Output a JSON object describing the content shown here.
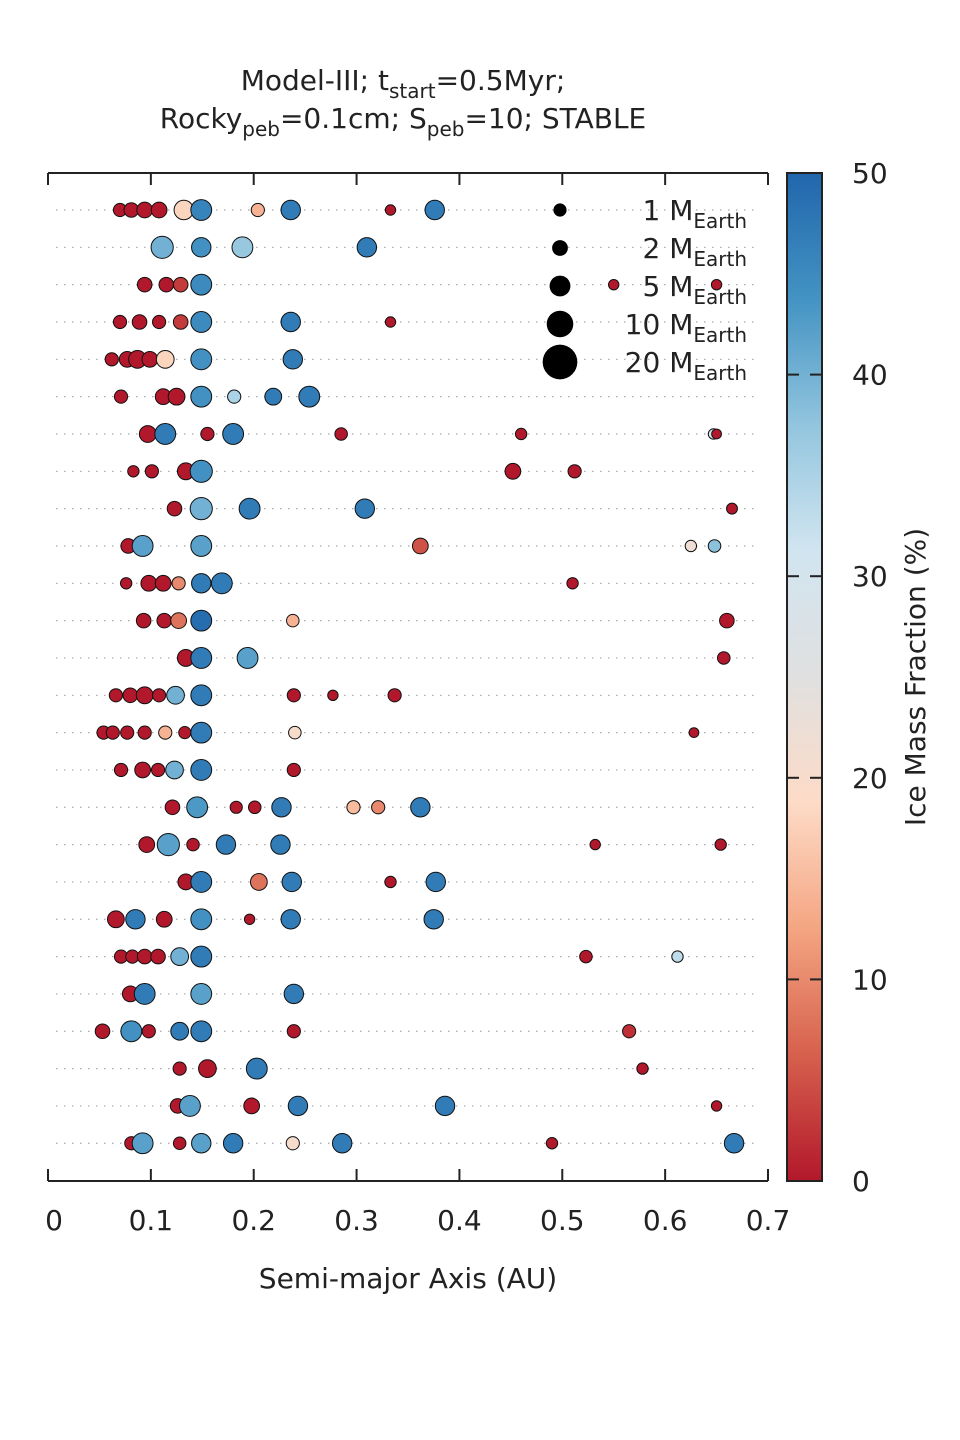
{
  "chart_data": {
    "type": "scatter",
    "title_line1": "Model-III; t",
    "title_line1_sub": "start",
    "title_line1_rest": "=0.5Myr;",
    "title_line2_a": "Rocky",
    "title_line2_a_sub": "peb",
    "title_line2_b": "=0.1cm; S",
    "title_line2_b_sub": "peb",
    "title_line2_c": "=10; STABLE",
    "xlabel": "Semi-major Axis (AU)",
    "xlim": [
      0,
      0.7
    ],
    "xticks": [
      "0",
      "0.1",
      "0.2",
      "0.3",
      "0.4",
      "0.5",
      "0.6",
      "0.7"
    ],
    "colorbar": {
      "label": "Ice Mass Fraction (%)",
      "range": [
        0,
        50
      ],
      "ticks": [
        "0",
        "10",
        "20",
        "30",
        "40",
        "50"
      ],
      "colors": [
        "#b2182b",
        "#d6604d",
        "#f4a582",
        "#fddbc7",
        "#e0e0e0",
        "#d1e5f0",
        "#92c5de",
        "#4393c3",
        "#2166ac"
      ]
    },
    "legend": [
      {
        "mass": 1,
        "label": "1 M",
        "sub": "Earth"
      },
      {
        "mass": 2,
        "label": "2 M",
        "sub": "Earth"
      },
      {
        "mass": 5,
        "label": "5 M",
        "sub": "Earth"
      },
      {
        "mass": 10,
        "label": "10 M",
        "sub": "Earth"
      },
      {
        "mass": 20,
        "label": "20 M",
        "sub": "Earth"
      }
    ],
    "systems": [
      [
        [
          0.07,
          1,
          0
        ],
        [
          0.081,
          1.5,
          0
        ],
        [
          0.094,
          2,
          0
        ],
        [
          0.108,
          2,
          0
        ],
        [
          0.132,
          4,
          18
        ],
        [
          0.149,
          5,
          46
        ],
        [
          0.204,
          1,
          14
        ],
        [
          0.236,
          4,
          47
        ],
        [
          0.333,
          0.3,
          0
        ],
        [
          0.376,
          4,
          47
        ]
      ],
      [
        [
          0.111,
          6,
          40
        ],
        [
          0.149,
          4,
          44
        ],
        [
          0.189,
          5,
          37
        ],
        [
          0.31,
          4,
          47
        ]
      ],
      [
        [
          0.094,
          1.5,
          0
        ],
        [
          0.115,
          1.5,
          0
        ],
        [
          0.129,
          1.5,
          3
        ],
        [
          0.149,
          5,
          45
        ],
        [
          0.55,
          0.3,
          0
        ],
        [
          0.65,
          0.3,
          0
        ]
      ],
      [
        [
          0.07,
          1,
          0
        ],
        [
          0.089,
          1.5,
          0
        ],
        [
          0.108,
          1,
          0
        ],
        [
          0.129,
          1.5,
          3
        ],
        [
          0.149,
          5,
          45
        ],
        [
          0.236,
          4,
          47
        ],
        [
          0.333,
          0.3,
          0
        ]
      ],
      [
        [
          0.062,
          1,
          0
        ],
        [
          0.077,
          2,
          0
        ],
        [
          0.087,
          3,
          0
        ],
        [
          0.099,
          2,
          0
        ],
        [
          0.114,
          3,
          18
        ],
        [
          0.149,
          5,
          44
        ],
        [
          0.238,
          4,
          47
        ]
      ],
      [
        [
          0.071,
          1,
          0
        ],
        [
          0.112,
          2,
          0
        ],
        [
          0.125,
          2.5,
          0
        ],
        [
          0.149,
          5,
          44
        ],
        [
          0.181,
          1,
          35
        ],
        [
          0.219,
          2.5,
          47
        ],
        [
          0.254,
          5,
          47
        ]
      ],
      [
        [
          0.097,
          2.5,
          0
        ],
        [
          0.114,
          5,
          47
        ],
        [
          0.155,
          1,
          0
        ],
        [
          0.18,
          5,
          47
        ],
        [
          0.285,
          0.8,
          0
        ],
        [
          0.46,
          0.5,
          0
        ],
        [
          0.647,
          0.3,
          30
        ],
        [
          0.65,
          0.2,
          0
        ]
      ],
      [
        [
          0.083,
          0.5,
          0
        ],
        [
          0.101,
          1,
          0
        ],
        [
          0.134,
          2.5,
          0
        ],
        [
          0.149,
          6,
          44
        ],
        [
          0.452,
          2,
          0
        ],
        [
          0.512,
          1,
          0
        ]
      ],
      [
        [
          0.123,
          1.5,
          0
        ],
        [
          0.149,
          6,
          40
        ],
        [
          0.196,
          5,
          47
        ],
        [
          0.308,
          4,
          47
        ],
        [
          0.665,
          0.4,
          0
        ]
      ],
      [
        [
          0.078,
          1.5,
          0
        ],
        [
          0.092,
          5,
          42
        ],
        [
          0.149,
          5,
          42
        ],
        [
          0.362,
          2,
          5
        ],
        [
          0.625,
          0.5,
          22
        ],
        [
          0.648,
          0.8,
          38
        ]
      ],
      [
        [
          0.076,
          0.5,
          0
        ],
        [
          0.098,
          2,
          0
        ],
        [
          0.112,
          2,
          0
        ],
        [
          0.127,
          1,
          10
        ],
        [
          0.149,
          4,
          47
        ],
        [
          0.169,
          5,
          47
        ],
        [
          0.51,
          0.5,
          0
        ]
      ],
      [
        [
          0.093,
          1.5,
          0
        ],
        [
          0.113,
          1.5,
          0
        ],
        [
          0.127,
          2,
          8
        ],
        [
          0.149,
          5,
          49
        ],
        [
          0.238,
          0.8,
          14
        ],
        [
          0.66,
          1.5,
          0
        ]
      ],
      [
        [
          0.134,
          2.5,
          0
        ],
        [
          0.149,
          5,
          47
        ],
        [
          0.194,
          5,
          42
        ],
        [
          0.657,
          0.8,
          0
        ]
      ],
      [
        [
          0.066,
          1,
          0
        ],
        [
          0.08,
          1.5,
          0
        ],
        [
          0.094,
          2.5,
          0
        ],
        [
          0.108,
          1,
          0
        ],
        [
          0.124,
          3,
          40
        ],
        [
          0.149,
          5,
          47
        ],
        [
          0.239,
          1,
          0
        ],
        [
          0.277,
          0.3,
          0
        ],
        [
          0.337,
          1,
          0
        ]
      ],
      [
        [
          0.054,
          1,
          0
        ],
        [
          0.063,
          1,
          0
        ],
        [
          0.077,
          1,
          0
        ],
        [
          0.094,
          1,
          0
        ],
        [
          0.114,
          1,
          14
        ],
        [
          0.133,
          0.7,
          0
        ],
        [
          0.149,
          5,
          47
        ],
        [
          0.24,
          0.8,
          20
        ],
        [
          0.628,
          0.2,
          0
        ]
      ],
      [
        [
          0.071,
          1,
          0
        ],
        [
          0.092,
          2,
          0
        ],
        [
          0.107,
          1,
          0
        ],
        [
          0.123,
          3,
          40
        ],
        [
          0.149,
          5,
          47
        ],
        [
          0.239,
          1,
          0
        ]
      ],
      [
        [
          0.121,
          1.5,
          0
        ],
        [
          0.145,
          5,
          43
        ],
        [
          0.183,
          0.7,
          0
        ],
        [
          0.201,
          0.8,
          0
        ],
        [
          0.227,
          4,
          47
        ],
        [
          0.297,
          1,
          15
        ],
        [
          0.321,
          1,
          10
        ],
        [
          0.362,
          4,
          47
        ]
      ],
      [
        [
          0.096,
          2,
          0
        ],
        [
          0.117,
          6,
          42
        ],
        [
          0.141,
          0.8,
          0
        ],
        [
          0.173,
          4,
          47
        ],
        [
          0.226,
          4,
          47
        ],
        [
          0.532,
          0.3,
          0
        ],
        [
          0.654,
          0.5,
          0
        ]
      ],
      [
        [
          0.134,
          2,
          0
        ],
        [
          0.149,
          5,
          47
        ],
        [
          0.205,
          2.5,
          8
        ],
        [
          0.237,
          4,
          47
        ],
        [
          0.333,
          0.5,
          0
        ],
        [
          0.377,
          4,
          47
        ]
      ],
      [
        [
          0.066,
          2.5,
          0
        ],
        [
          0.085,
          4,
          47
        ],
        [
          0.113,
          2,
          0
        ],
        [
          0.149,
          5,
          44
        ],
        [
          0.196,
          0.3,
          0
        ],
        [
          0.236,
          4,
          47
        ],
        [
          0.375,
          4,
          47
        ]
      ],
      [
        [
          0.071,
          1,
          0
        ],
        [
          0.082,
          1,
          0
        ],
        [
          0.094,
          1.5,
          0
        ],
        [
          0.107,
          1.5,
          0
        ],
        [
          0.128,
          3,
          40
        ],
        [
          0.149,
          5,
          47
        ],
        [
          0.523,
          0.8,
          0
        ],
        [
          0.612,
          0.5,
          33
        ]
      ],
      [
        [
          0.08,
          2,
          0
        ],
        [
          0.094,
          5,
          47
        ],
        [
          0.149,
          5,
          42
        ],
        [
          0.239,
          4,
          47
        ]
      ],
      [
        [
          0.053,
          1.5,
          0
        ],
        [
          0.081,
          5,
          44
        ],
        [
          0.098,
          1,
          0
        ],
        [
          0.128,
          3,
          47
        ],
        [
          0.149,
          5,
          47
        ],
        [
          0.239,
          1,
          0
        ],
        [
          0.565,
          1,
          2
        ]
      ],
      [
        [
          0.128,
          1,
          0
        ],
        [
          0.155,
          3,
          0
        ],
        [
          0.203,
          5,
          47
        ],
        [
          0.578,
          0.5,
          0
        ]
      ],
      [
        [
          0.126,
          1.5,
          0
        ],
        [
          0.138,
          5,
          42
        ],
        [
          0.198,
          2,
          0
        ],
        [
          0.243,
          4,
          47
        ],
        [
          0.386,
          4,
          47
        ],
        [
          0.65,
          0.3,
          0
        ]
      ],
      [
        [
          0.081,
          1,
          0
        ],
        [
          0.092,
          5,
          42
        ],
        [
          0.128,
          0.8,
          0
        ],
        [
          0.149,
          4,
          42
        ],
        [
          0.18,
          4,
          47
        ],
        [
          0.238,
          1,
          20
        ],
        [
          0.286,
          4,
          47
        ],
        [
          0.49,
          0.5,
          0
        ],
        [
          0.667,
          4,
          47
        ]
      ]
    ]
  }
}
